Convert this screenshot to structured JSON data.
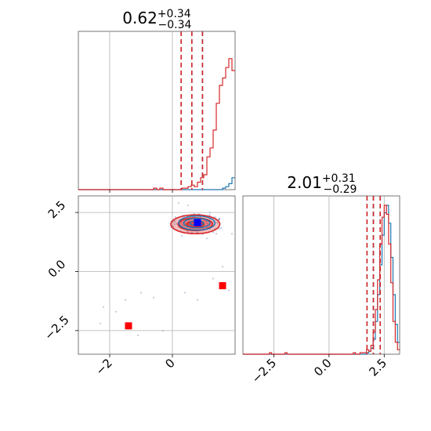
{
  "chart_data": [
    {
      "type": "histogram",
      "panel": "top-left",
      "title": {
        "value": "0.62",
        "plus": "+0.34",
        "minus": "−0.34"
      },
      "xlim": [
        -3.0,
        2.0
      ],
      "grid": true,
      "bins": {
        "start": -3.0,
        "width": 0.1
      },
      "series": [
        {
          "color": "#1f77b4",
          "counts": [
            0,
            0,
            0,
            0,
            0,
            0,
            0,
            0,
            0,
            0,
            0,
            0,
            0,
            0,
            0,
            0,
            0,
            0,
            0,
            0,
            0,
            0,
            0,
            0,
            0,
            0,
            0,
            0,
            0,
            0,
            0,
            0,
            0,
            0,
            0,
            0,
            0,
            0,
            0,
            0,
            0,
            0,
            0,
            0,
            0,
            0,
            1,
            2,
            4,
            8,
            16,
            32,
            58,
            85,
            100,
            90,
            70,
            45,
            24,
            10,
            4,
            1,
            0,
            0,
            0,
            0,
            0,
            0,
            0,
            0,
            0,
            0,
            0,
            0,
            0,
            0,
            0,
            0,
            0,
            0,
            0,
            0,
            0,
            0,
            0,
            0,
            0,
            0,
            0,
            0,
            0,
            0,
            0,
            0,
            0,
            0,
            0,
            0,
            0,
            0,
            0
          ],
          "quantiles": [
            0.28,
            0.62,
            0.96
          ]
        },
        {
          "color": "#d62728",
          "counts": [
            0,
            0,
            0,
            0,
            0,
            0,
            0,
            0,
            0,
            0,
            0,
            0,
            0,
            0,
            0,
            0,
            0,
            0,
            0,
            0,
            0,
            0,
            0,
            0,
            1,
            0,
            1,
            0,
            0,
            0,
            0,
            0,
            0,
            1,
            1,
            2,
            3,
            2,
            5,
            8,
            10,
            22,
            28,
            40,
            58,
            70,
            75,
            82,
            88,
            80,
            67,
            50,
            38,
            22,
            10,
            5,
            3,
            2,
            2,
            1,
            0,
            1,
            0,
            0,
            0,
            0,
            0,
            0,
            0,
            0,
            0,
            0,
            0,
            0,
            0,
            0,
            0,
            0,
            0,
            0,
            0,
            0,
            0,
            0,
            0,
            0,
            0,
            0,
            0,
            0,
            0,
            0,
            0,
            0,
            0,
            0,
            0,
            0,
            0,
            0
          ],
          "quantiles": [
            0.28,
            0.62,
            0.96
          ]
        }
      ]
    },
    {
      "type": "scatter",
      "panel": "bottom-left",
      "xlim": [
        -3.0,
        2.0
      ],
      "ylim": [
        -3.5,
        3.2
      ],
      "xticks": [
        -2,
        0
      ],
      "yticks": [
        -2.5,
        0.0,
        2.5
      ],
      "xtick_labels": [
        "−2",
        "0"
      ],
      "ytick_labels": [
        "−2.5",
        "0.0",
        "2.5"
      ],
      "grid": true,
      "contours": [
        {
          "color": "#d62728",
          "fill": true,
          "center": [
            0.73,
            2.0
          ],
          "levels": [
            [
              0.28,
              0.12
            ],
            [
              0.55,
              0.27
            ],
            [
              0.78,
              0.4
            ]
          ]
        },
        {
          "color": "#1f77b4",
          "fill": false,
          "center": [
            0.78,
            2.05
          ],
          "levels": [
            [
              0.22,
              0.1
            ],
            [
              0.42,
              0.2
            ],
            [
              0.58,
              0.3
            ]
          ]
        }
      ],
      "markers": [
        {
          "x": -1.4,
          "y": -2.3,
          "color": "#ff0000"
        },
        {
          "x": 1.6,
          "y": -0.6,
          "color": "#ff0000"
        },
        {
          "x": 0.8,
          "y": 2.07,
          "color": "#ff0000"
        },
        {
          "x": 0.8,
          "y": 2.07,
          "color": "#0000ff"
        }
      ],
      "samples": [
        {
          "x": -2.2,
          "y": -1.5
        },
        {
          "x": -1.8,
          "y": -1.7
        },
        {
          "x": -1.5,
          "y": -1.2
        },
        {
          "x": -1.0,
          "y": -0.9
        },
        {
          "x": -1.1,
          "y": -2.7
        },
        {
          "x": -0.6,
          "y": -1.1
        },
        {
          "x": -0.3,
          "y": -2.5
        },
        {
          "x": 0.4,
          "y": -0.9
        },
        {
          "x": 0.8,
          "y": -1.2
        },
        {
          "x": 1.3,
          "y": -0.3
        },
        {
          "x": 1.6,
          "y": 0.2
        },
        {
          "x": 1.9,
          "y": 1.6
        },
        {
          "x": 0.3,
          "y": 1.5
        },
        {
          "x": 1.2,
          "y": 2.5
        },
        {
          "x": 0.2,
          "y": 2.9
        },
        {
          "x": 1.4,
          "y": 1.6
        },
        {
          "x": 0.1,
          "y": 2.3
        },
        {
          "x": 1.5,
          "y": 2.2
        },
        {
          "x": 0.5,
          "y": 2.8
        },
        {
          "x": 1.1,
          "y": 1.4
        },
        {
          "x": -2.3,
          "y": -2.2
        },
        {
          "x": 1.8,
          "y": -0.8
        }
      ]
    },
    {
      "type": "histogram",
      "panel": "bottom-right",
      "title": {
        "value": "2.01",
        "plus": "+0.31",
        "minus": "−0.29"
      },
      "xlim": [
        -3.9,
        3.2
      ],
      "xticks": [
        -2.5,
        0.0,
        2.5
      ],
      "xtick_labels": [
        "−2.5",
        "0.0",
        "2.5"
      ],
      "grid": true,
      "bins": {
        "start": -3.9,
        "width": 0.1
      },
      "series": [
        {
          "color": "#1f77b4",
          "counts": [
            0,
            0,
            0,
            0,
            0,
            0,
            0,
            0,
            0,
            0,
            0,
            0,
            0,
            0,
            0,
            0,
            0,
            0,
            0,
            0,
            0,
            0,
            0,
            0,
            0,
            0,
            0,
            0,
            0,
            0,
            0,
            0,
            0,
            0,
            0,
            0,
            0,
            0,
            0,
            0,
            0,
            0,
            0,
            0,
            0,
            0,
            0,
            0,
            0,
            0,
            0,
            0,
            0,
            0,
            0,
            0,
            1,
            2,
            4,
            10,
            22,
            40,
            60,
            80,
            95,
            100,
            88,
            65,
            40,
            20,
            8,
            3,
            1
          ],
          "quantiles": [
            1.72,
            2.01,
            2.32
          ]
        },
        {
          "color": "#d62728",
          "counts": [
            0,
            0,
            0,
            0,
            0,
            0,
            0,
            0,
            0,
            0,
            0,
            0,
            1,
            0,
            0,
            0,
            0,
            0,
            0,
            1,
            0,
            0,
            0,
            0,
            0,
            0,
            0,
            0,
            0,
            0,
            0,
            0,
            0,
            0,
            0,
            0,
            0,
            0,
            0,
            0,
            0,
            0,
            0,
            0,
            0,
            0,
            0,
            0,
            0,
            0,
            1,
            0,
            0,
            1,
            1,
            1,
            3,
            2,
            6,
            15,
            30,
            50,
            74,
            92,
            100,
            94,
            74,
            48,
            22,
            8,
            3,
            1,
            0
          ],
          "quantiles": [
            1.72,
            2.01,
            2.32
          ]
        }
      ]
    }
  ]
}
